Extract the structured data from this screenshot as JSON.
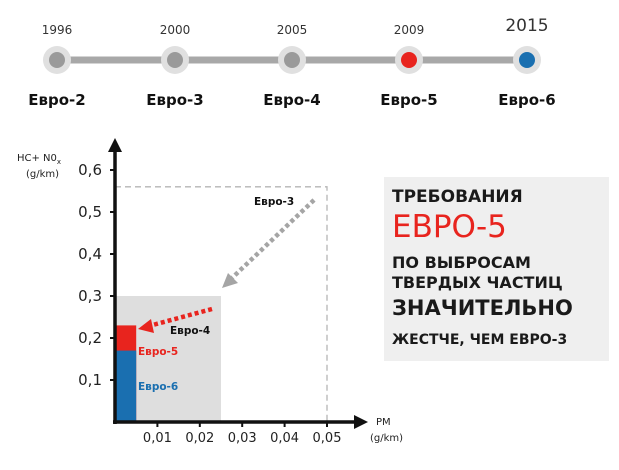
{
  "timeline": {
    "items": [
      {
        "year": "1996",
        "standard": "Евро-2",
        "state": "past"
      },
      {
        "year": "2000",
        "standard": "Евро-3",
        "state": "past"
      },
      {
        "year": "2005",
        "standard": "Евро-4",
        "state": "past"
      },
      {
        "year": "2009",
        "standard": "Евро-5",
        "state": "highlight"
      },
      {
        "year": "2015",
        "standard": "Евро-6",
        "state": "future"
      }
    ],
    "colors": {
      "past": "#9a9a9a",
      "highlight": "#e8241e",
      "future": "#1a6fb0",
      "track": "#a8a8a8"
    }
  },
  "chart": {
    "y_axis_label_1": "HC+ N0",
    "y_axis_label_sub": "x",
    "y_axis_label_2": "(g/km)",
    "x_axis_label_1": "PM",
    "x_axis_label_2": "(g/km)",
    "y_ticks": [
      "0,1",
      "0,2",
      "0,3",
      "0,4",
      "0,5",
      "0,6"
    ],
    "x_ticks": [
      "0,01",
      "0,02",
      "0,03",
      "0,04",
      "0,05"
    ],
    "regions": [
      {
        "name": "Евро-3",
        "pm_max": 0.05,
        "hc_nox_max": 0.56,
        "style": "dashed"
      },
      {
        "name": "Евро-4",
        "pm_max": 0.025,
        "hc_nox_max": 0.3,
        "color": "#dedede"
      },
      {
        "name": "Евро-5",
        "pm_max": 0.005,
        "hc_nox_max": 0.23,
        "color": "#e8241e"
      },
      {
        "name": "Евро-6",
        "pm_max": 0.005,
        "hc_nox_max": 0.17,
        "color": "#1a6fb0"
      }
    ],
    "xlim": [
      0,
      0.05
    ],
    "ylim": [
      0,
      0.6
    ]
  },
  "panel": {
    "line1": "ТРЕБОВАНИЯ",
    "line2": "ЕВРО-5",
    "line3": "ПО ВЫБРОСАМ",
    "line4": "ТВЕРДЫХ ЧАСТИЦ",
    "line5": "ЗНАЧИТЕЛЬНО",
    "line6": "ЖЕСТЧЕ, ЧЕМ ЕВРО-3",
    "accent_color": "#e8241e"
  }
}
